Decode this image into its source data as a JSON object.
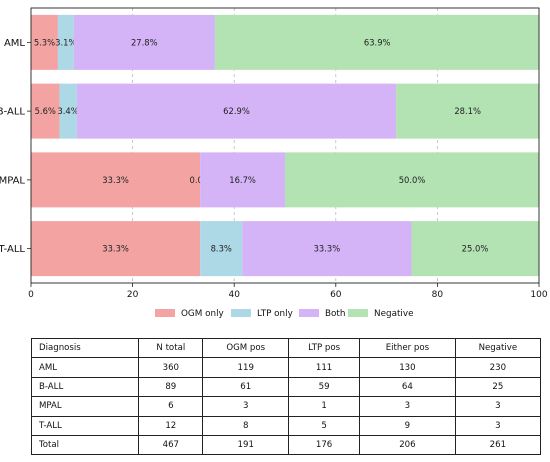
{
  "chart_data": {
    "type": "bar",
    "orientation": "horizontal",
    "stacked": true,
    "categories": [
      "AML",
      "B-ALL",
      "MPAL",
      "T-ALL"
    ],
    "series": [
      {
        "name": "OGM only",
        "color": "#f4a3a3",
        "values": [
          5.3,
          5.6,
          33.3,
          33.3
        ],
        "labels": [
          "5.3%",
          "5.6%",
          "33.3%",
          "33.3%"
        ]
      },
      {
        "name": "LTP only",
        "color": "#add8e6",
        "values": [
          3.1,
          3.4,
          0.0,
          8.3
        ],
        "labels": [
          "3.1%",
          "3.4%",
          "0.0%",
          "8.3%"
        ]
      },
      {
        "name": "Both",
        "color": "#d4b3f6",
        "values": [
          27.8,
          62.9,
          16.7,
          33.3
        ],
        "labels": [
          "27.8%",
          "62.9%",
          "16.7%",
          "33.3%"
        ]
      },
      {
        "name": "Negative",
        "color": "#b3e2b3",
        "values": [
          63.9,
          28.1,
          50.0,
          25.0
        ],
        "labels": [
          "63.9%",
          "28.1%",
          "50.0%",
          "25.0%"
        ]
      }
    ],
    "xlim": [
      0,
      100
    ],
    "xticks": [
      "0",
      "20",
      "40",
      "60",
      "80",
      "100"
    ],
    "grid": "vertical dashed",
    "legend": "bottom"
  },
  "table": {
    "headers": [
      "Diagnosis",
      "N total",
      "OGM pos",
      "LTP pos",
      "Either pos",
      "Negative"
    ],
    "rows": [
      [
        "AML",
        "360",
        "119",
        "111",
        "130",
        "230"
      ],
      [
        "B-ALL",
        "89",
        "61",
        "59",
        "64",
        "25"
      ],
      [
        "MPAL",
        "6",
        "3",
        "1",
        "3",
        "3"
      ],
      [
        "T-ALL",
        "12",
        "8",
        "5",
        "9",
        "3"
      ],
      [
        "Total",
        "467",
        "191",
        "176",
        "206",
        "261"
      ]
    ]
  }
}
